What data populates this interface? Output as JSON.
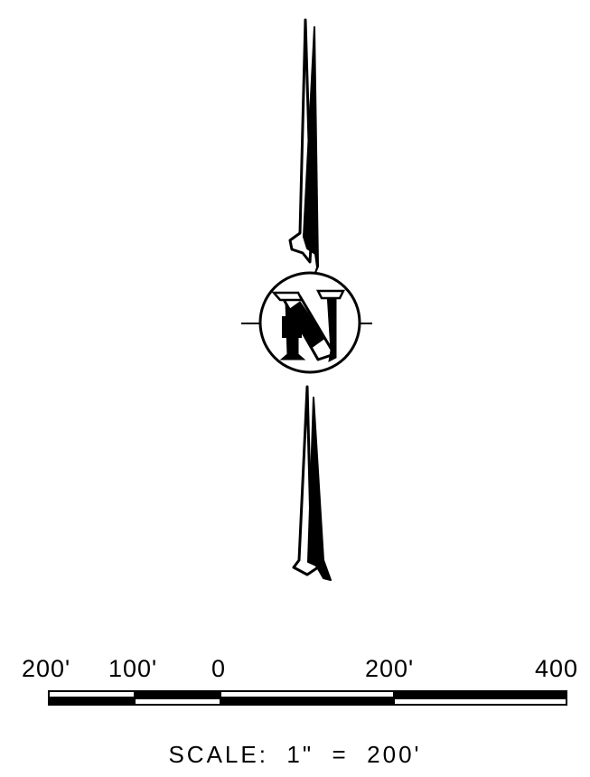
{
  "compass": {
    "letter": "N"
  },
  "scale_bar": {
    "ticks": [
      {
        "label": "200'"
      },
      {
        "label": "100'"
      },
      {
        "label": "0"
      },
      {
        "label": "200'"
      },
      {
        "label": "400"
      }
    ],
    "caption": "SCALE:  1\"  =  200'"
  }
}
